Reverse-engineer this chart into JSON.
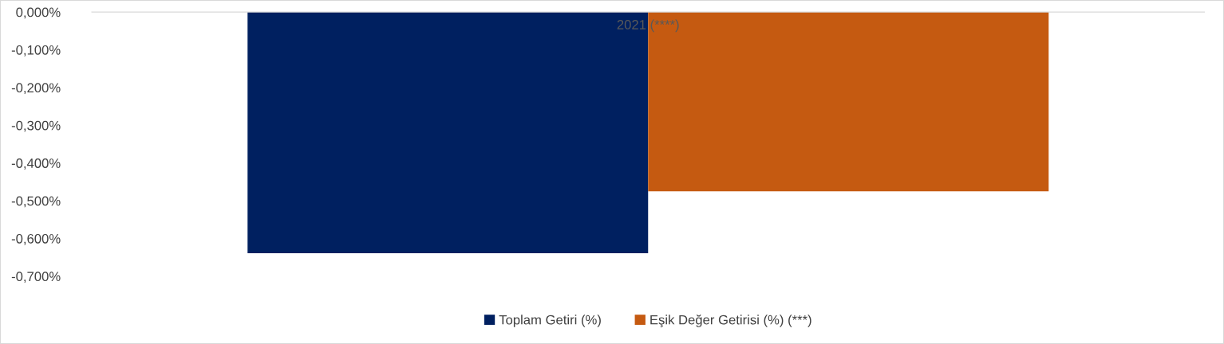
{
  "chart_data": {
    "type": "bar",
    "categories": [
      "2021 (****)"
    ],
    "series": [
      {
        "name": "Toplam Getiri (%)",
        "color": "#002060",
        "values": [
          -0.639
        ]
      },
      {
        "name": "Eşik Değer Getirisi (%) (***)",
        "color": "#c55a11",
        "values": [
          -0.475
        ]
      }
    ],
    "ylim": [
      -0.7,
      0
    ],
    "yticks": [
      {
        "value": 0,
        "label": "0,000%"
      },
      {
        "value": -0.1,
        "label": "-0,100%"
      },
      {
        "value": -0.2,
        "label": "-0,200%"
      },
      {
        "value": -0.3,
        "label": "-0,300%"
      },
      {
        "value": -0.4,
        "label": "-0,400%"
      },
      {
        "value": -0.5,
        "label": "-0,500%"
      },
      {
        "value": -0.6,
        "label": "-0,600%"
      },
      {
        "value": -0.7,
        "label": "-0,700%"
      }
    ],
    "grid": false,
    "legend": "bottom"
  }
}
